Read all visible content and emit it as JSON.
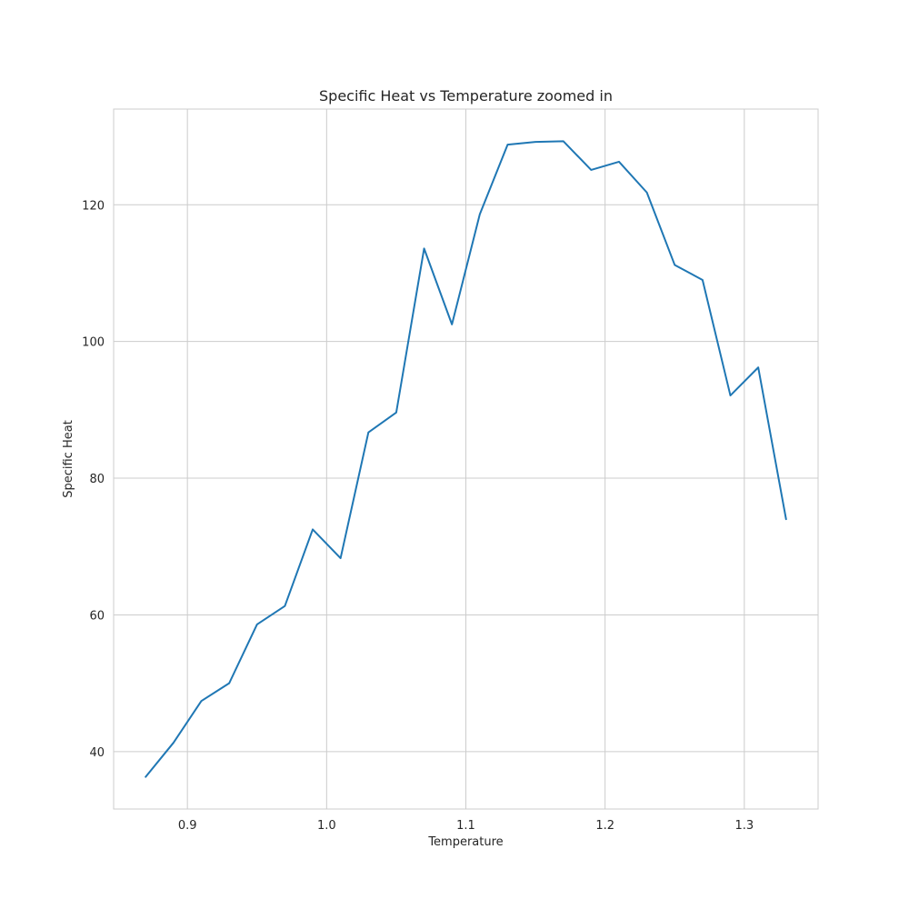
{
  "chart_data": {
    "type": "line",
    "title": "Specific Heat vs Temperature zoomed in",
    "xlabel": "Temperature",
    "ylabel": "Specific Heat",
    "xlim": [
      0.847,
      1.353
    ],
    "ylim": [
      31.6,
      134.0
    ],
    "xticks": [
      0.9,
      1.0,
      1.1,
      1.2,
      1.3
    ],
    "xtick_labels": [
      "0.9",
      "1.0",
      "1.1",
      "1.2",
      "1.3"
    ],
    "yticks": [
      40,
      60,
      80,
      100,
      120
    ],
    "ytick_labels": [
      "40",
      "60",
      "80",
      "100",
      "120"
    ],
    "grid": true,
    "legend": "none",
    "series": [
      {
        "color": "#1f77b4",
        "x": [
          0.87,
          0.89,
          0.91,
          0.93,
          0.95,
          0.97,
          0.99,
          1.01,
          1.03,
          1.05,
          1.07,
          1.09,
          1.11,
          1.13,
          1.15,
          1.17,
          1.19,
          1.21,
          1.23,
          1.25,
          1.27,
          1.29,
          1.31,
          1.33
        ],
        "y": [
          36.3,
          41.3,
          47.4,
          50.0,
          58.6,
          61.3,
          72.5,
          68.3,
          86.7,
          89.6,
          113.6,
          102.5,
          118.6,
          128.8,
          129.2,
          129.3,
          125.1,
          126.3,
          121.8,
          111.2,
          109.0,
          92.1,
          96.2,
          74.0
        ]
      }
    ]
  }
}
